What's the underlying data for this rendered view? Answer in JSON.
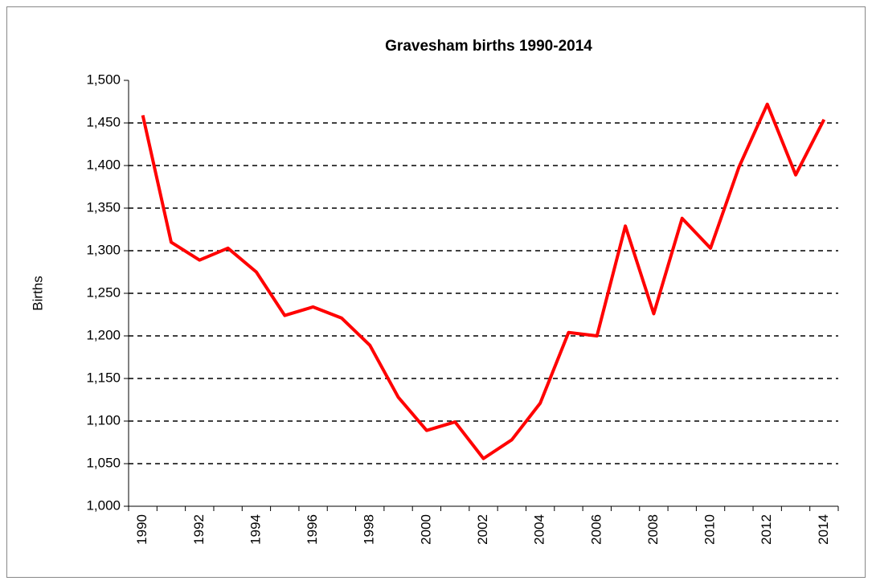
{
  "chart_data": {
    "type": "line",
    "title": "Gravesham births 1990-2014",
    "y_label": "Births",
    "categories": [
      "1990",
      null,
      "1992",
      null,
      "1994",
      null,
      "1996",
      null,
      "1998",
      null,
      "2000",
      null,
      "2002",
      null,
      "2004",
      null,
      "2006",
      null,
      "2008",
      null,
      "2010",
      null,
      "2012",
      null,
      "2014"
    ],
    "series": [
      {
        "name": "Births",
        "color": "#ff0000",
        "values": [
          1459,
          1310,
          1289,
          1303,
          1275,
          1224,
          1234,
          1221,
          1189,
          1128,
          1089,
          1099,
          1056,
          1078,
          1121,
          1204,
          1200,
          1329,
          1226,
          1338,
          1303,
          1398,
          1472,
          1389,
          1454
        ]
      }
    ],
    "ylim": [
      1000,
      1500
    ],
    "yticks": [
      {
        "value": 1000,
        "label": "1,000"
      },
      {
        "value": 1050,
        "label": "1,050"
      },
      {
        "value": 1100,
        "label": "1,100"
      },
      {
        "value": 1150,
        "label": "1,150"
      },
      {
        "value": 1200,
        "label": "1,200"
      },
      {
        "value": 1250,
        "label": "1,250"
      },
      {
        "value": 1300,
        "label": "1,300"
      },
      {
        "value": 1350,
        "label": "1,350"
      },
      {
        "value": 1400,
        "label": "1,400"
      },
      {
        "value": 1450,
        "label": "1,450"
      },
      {
        "value": 1500,
        "label": "1,500"
      }
    ],
    "grid": true
  }
}
